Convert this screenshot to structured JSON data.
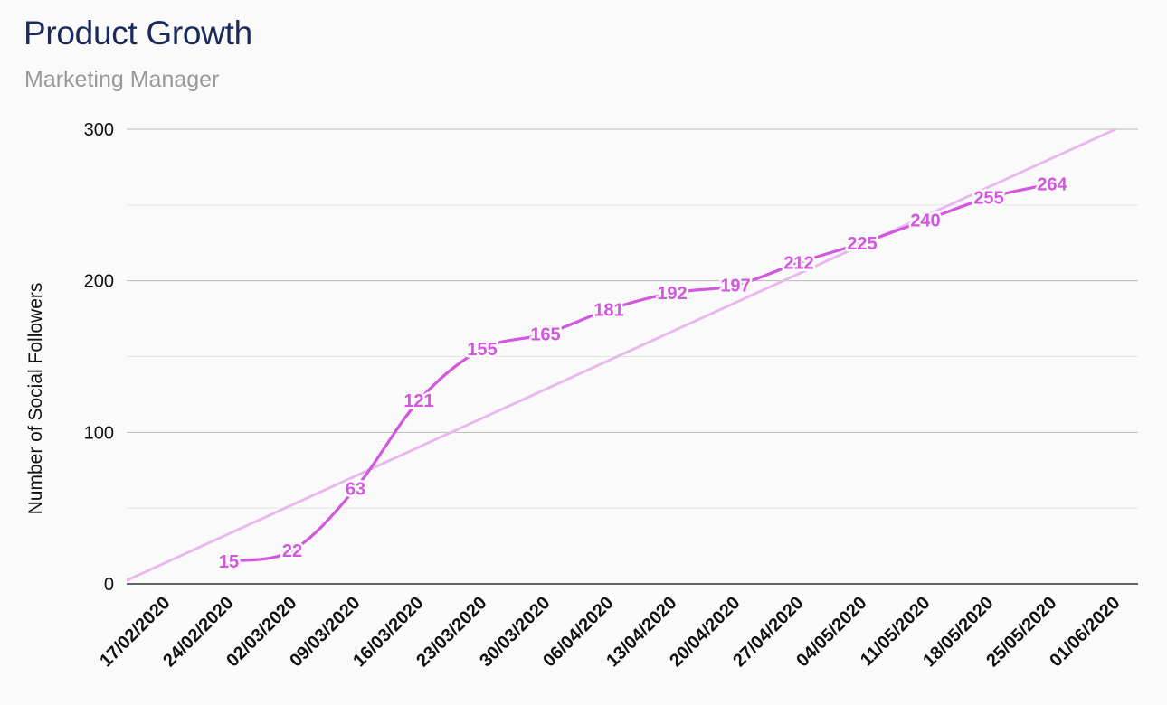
{
  "header": {
    "title": "Product Growth",
    "subtitle": "Marketing Manager"
  },
  "chart_data": {
    "type": "line",
    "ylabel": "Number of Social Followers",
    "xlabel": "",
    "ylim": [
      0,
      300
    ],
    "y_ticks": [
      0,
      100,
      200,
      300
    ],
    "grid": true,
    "x_ticks": [
      "17/02/2020",
      "24/02/2020",
      "02/03/2020",
      "09/03/2020",
      "16/03/2020",
      "23/03/2020",
      "30/03/2020",
      "06/04/2020",
      "13/04/2020",
      "20/04/2020",
      "27/04/2020",
      "04/05/2020",
      "11/05/2020",
      "18/05/2020",
      "25/05/2020",
      "01/06/2020"
    ],
    "xlim": [
      "17/02/2020",
      "01/06/2020"
    ],
    "series": [
      {
        "x": [
          "24/02/2020",
          "02/03/2020",
          "09/03/2020",
          "16/03/2020",
          "23/03/2020",
          "30/03/2020",
          "06/04/2020",
          "13/04/2020",
          "20/04/2020",
          "27/04/2020",
          "04/05/2020",
          "11/05/2020",
          "18/05/2020",
          "25/05/2020"
        ],
        "values": [
          15,
          22,
          63,
          121,
          155,
          165,
          181,
          192,
          197,
          212,
          225,
          240,
          255,
          264
        ],
        "color": "#d357e0",
        "smooth": true,
        "data_labels": true
      }
    ],
    "trendline": {
      "type": "linear",
      "color": "#e8b8ee",
      "start": {
        "x": "17/02/2020",
        "y": 14
      },
      "end": {
        "x": "01/06/2020",
        "y": 300
      }
    }
  }
}
